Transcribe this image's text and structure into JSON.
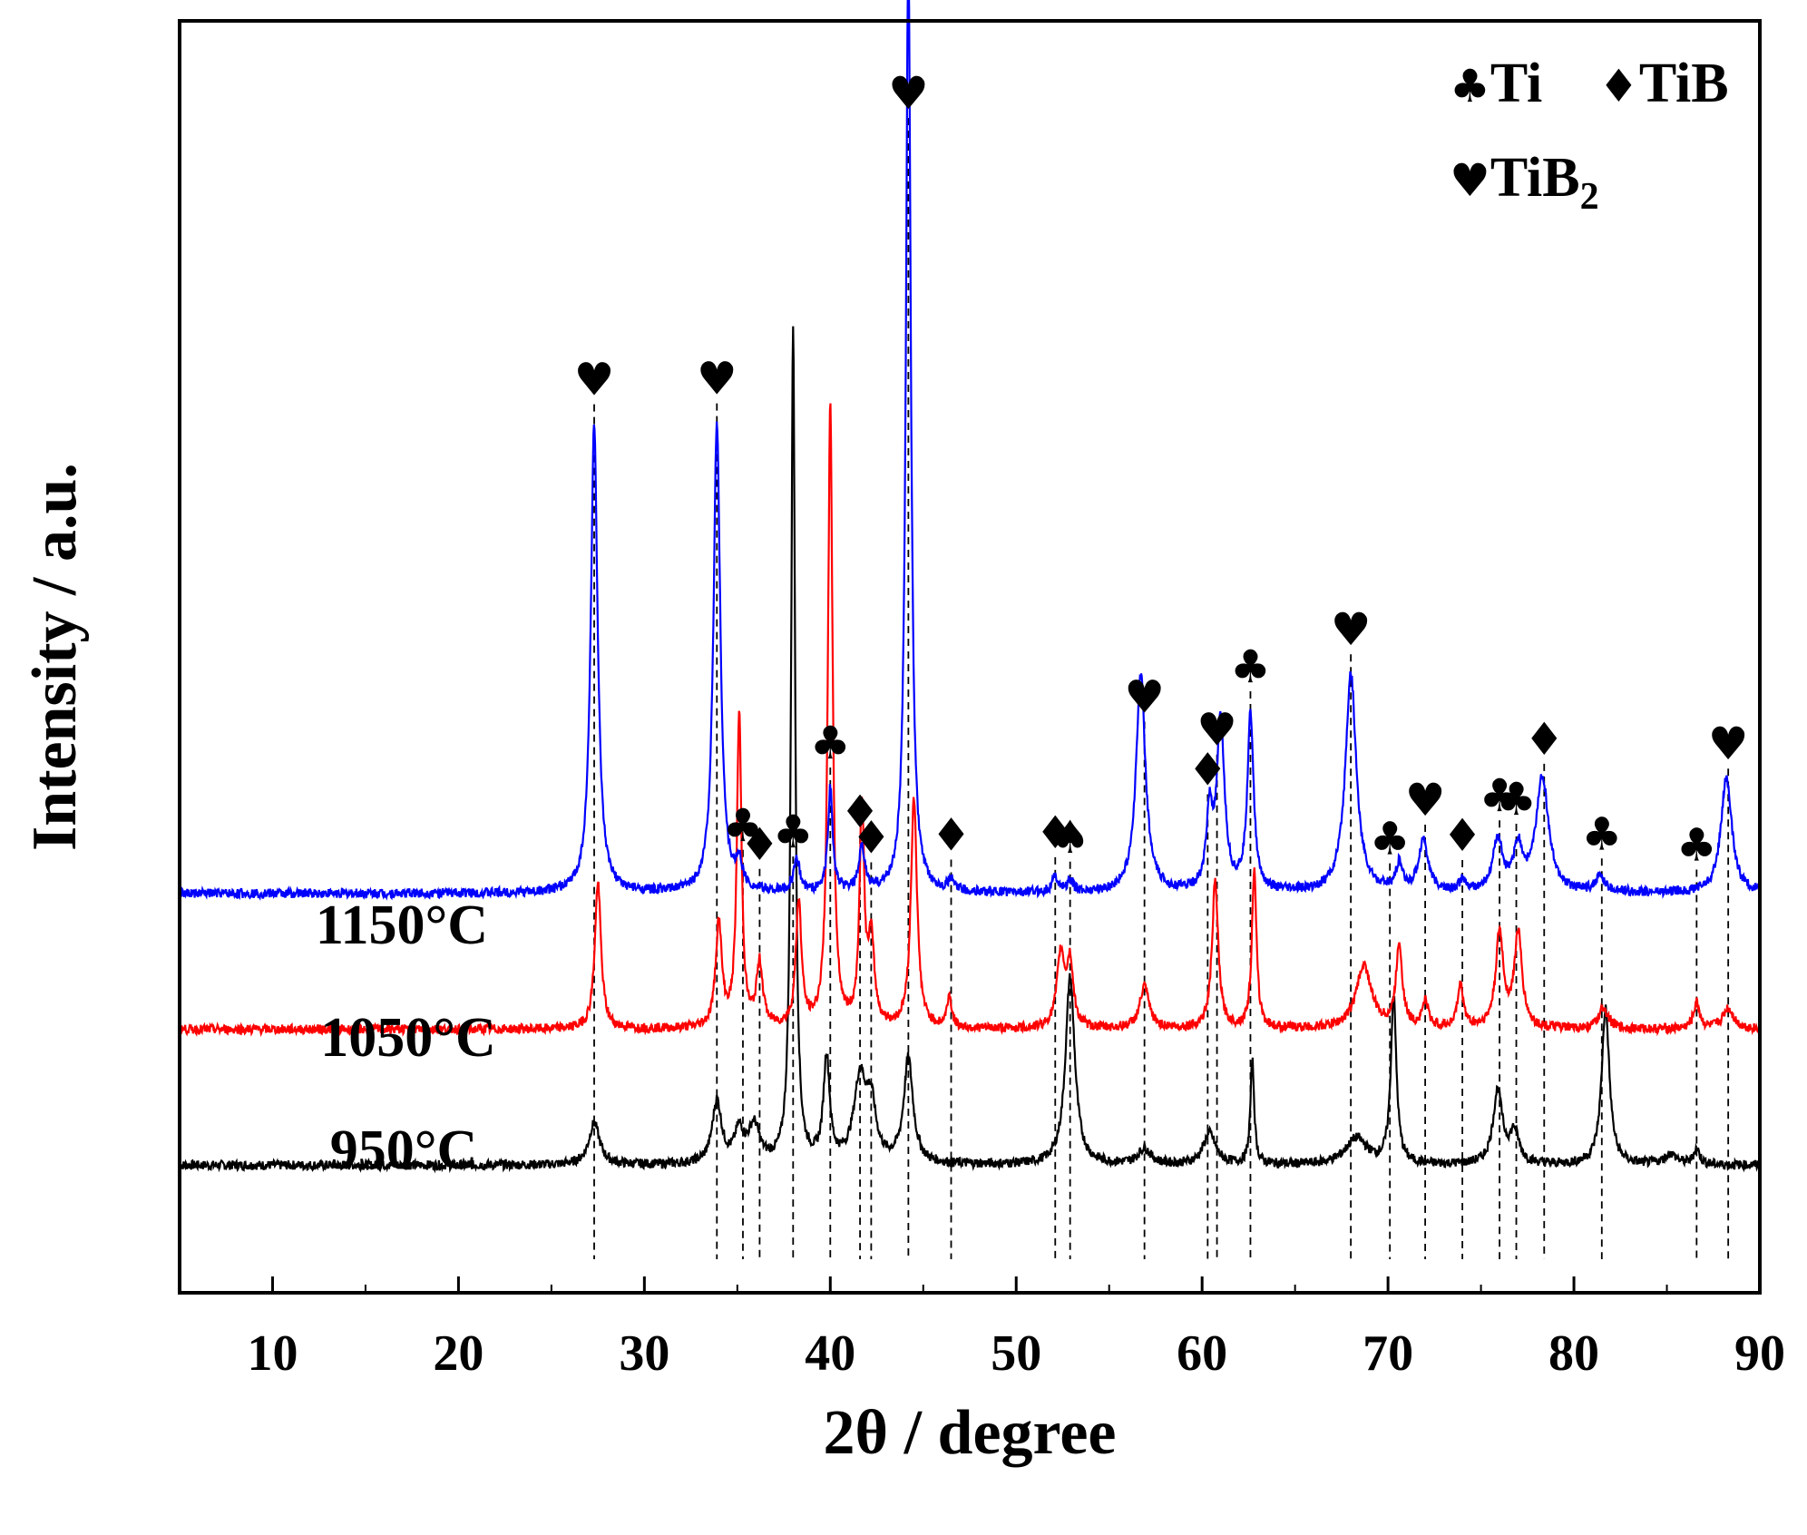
{
  "chart_data": {
    "type": "line",
    "title": "",
    "xlabel": "2θ / degree",
    "ylabel": "Intensity / a.u.",
    "xlim": [
      5,
      90
    ],
    "xticks": [
      10,
      20,
      30,
      40,
      50,
      60,
      70,
      80,
      90
    ],
    "ylim": [
      0,
      100
    ],
    "grid": false,
    "legend": {
      "placement": "top-right",
      "entries": [
        {
          "symbol": "♣",
          "label": "Ti"
        },
        {
          "symbol": "♦",
          "label": "TiB"
        },
        {
          "symbol": "♥",
          "label": "TiB",
          "subscript": "2"
        }
      ]
    },
    "series": [
      {
        "name": "950°C",
        "color": "#000000",
        "baseline": 5,
        "peaks": [
          {
            "x": 27.3,
            "h": 4,
            "w": 0.35
          },
          {
            "x": 33.9,
            "h": 6,
            "w": 0.3
          },
          {
            "x": 35.1,
            "h": 3,
            "w": 0.3
          },
          {
            "x": 35.9,
            "h": 3.5,
            "w": 0.35
          },
          {
            "x": 38.0,
            "h": 80,
            "w": 0.13
          },
          {
            "x": 39.8,
            "h": 10,
            "w": 0.2
          },
          {
            "x": 41.6,
            "h": 8,
            "w": 0.4
          },
          {
            "x": 42.2,
            "h": 5,
            "w": 0.3
          },
          {
            "x": 44.2,
            "h": 10,
            "w": 0.3
          },
          {
            "x": 52.9,
            "h": 18,
            "w": 0.3
          },
          {
            "x": 56.9,
            "h": 1.5,
            "w": 0.4
          },
          {
            "x": 60.4,
            "h": 3,
            "w": 0.4
          },
          {
            "x": 62.7,
            "h": 10,
            "w": 0.12
          },
          {
            "x": 68.3,
            "h": 2.5,
            "w": 0.7
          },
          {
            "x": 70.3,
            "h": 16,
            "w": 0.18
          },
          {
            "x": 75.9,
            "h": 7,
            "w": 0.3
          },
          {
            "x": 76.8,
            "h": 3,
            "w": 0.3
          },
          {
            "x": 81.7,
            "h": 15,
            "w": 0.25
          },
          {
            "x": 85.2,
            "h": 1,
            "w": 0.4
          },
          {
            "x": 86.6,
            "h": 1.5,
            "w": 0.2
          }
        ]
      },
      {
        "name": "1050°C",
        "color": "#ff0000",
        "baseline": 18,
        "peaks": [
          {
            "x": 27.5,
            "h": 14,
            "w": 0.2
          },
          {
            "x": 34.0,
            "h": 10,
            "w": 0.2
          },
          {
            "x": 35.1,
            "h": 30,
            "w": 0.15
          },
          {
            "x": 36.2,
            "h": 6,
            "w": 0.2
          },
          {
            "x": 38.3,
            "h": 12,
            "w": 0.18
          },
          {
            "x": 40.0,
            "h": 60,
            "w": 0.15
          },
          {
            "x": 41.7,
            "h": 21,
            "w": 0.15
          },
          {
            "x": 42.2,
            "h": 8,
            "w": 0.2
          },
          {
            "x": 44.5,
            "h": 22,
            "w": 0.2
          },
          {
            "x": 46.4,
            "h": 3,
            "w": 0.15
          },
          {
            "x": 52.4,
            "h": 7,
            "w": 0.25
          },
          {
            "x": 52.9,
            "h": 6,
            "w": 0.2
          },
          {
            "x": 56.9,
            "h": 4,
            "w": 0.3
          },
          {
            "x": 60.7,
            "h": 14,
            "w": 0.2
          },
          {
            "x": 62.8,
            "h": 15,
            "w": 0.15
          },
          {
            "x": 68.7,
            "h": 6,
            "w": 0.5
          },
          {
            "x": 70.6,
            "h": 8,
            "w": 0.2
          },
          {
            "x": 72.0,
            "h": 2.5,
            "w": 0.2
          },
          {
            "x": 73.9,
            "h": 4,
            "w": 0.2
          },
          {
            "x": 76.0,
            "h": 9,
            "w": 0.25
          },
          {
            "x": 77.0,
            "h": 9,
            "w": 0.25
          },
          {
            "x": 81.6,
            "h": 2,
            "w": 0.3
          },
          {
            "x": 86.6,
            "h": 2.5,
            "w": 0.2
          },
          {
            "x": 88.3,
            "h": 2,
            "w": 0.35
          }
        ]
      },
      {
        "name": "1150°C",
        "color": "#0000ff",
        "baseline": 31,
        "peaks": [
          {
            "x": 27.3,
            "h": 45,
            "w": 0.22
          },
          {
            "x": 33.9,
            "h": 45,
            "w": 0.22
          },
          {
            "x": 35.1,
            "h": 2.5,
            "w": 0.2
          },
          {
            "x": 38.2,
            "h": 3,
            "w": 0.2
          },
          {
            "x": 40.0,
            "h": 10,
            "w": 0.15
          },
          {
            "x": 41.7,
            "h": 4,
            "w": 0.2
          },
          {
            "x": 44.2,
            "h": 90,
            "w": 0.16
          },
          {
            "x": 46.5,
            "h": 1,
            "w": 0.2
          },
          {
            "x": 52.1,
            "h": 1.5,
            "w": 0.2
          },
          {
            "x": 52.9,
            "h": 1,
            "w": 0.2
          },
          {
            "x": 56.7,
            "h": 21,
            "w": 0.3
          },
          {
            "x": 60.4,
            "h": 7,
            "w": 0.2
          },
          {
            "x": 61.0,
            "h": 16,
            "w": 0.25
          },
          {
            "x": 62.6,
            "h": 17,
            "w": 0.2
          },
          {
            "x": 68.0,
            "h": 21,
            "w": 0.35
          },
          {
            "x": 70.6,
            "h": 2.5,
            "w": 0.2
          },
          {
            "x": 71.9,
            "h": 5,
            "w": 0.3
          },
          {
            "x": 74.0,
            "h": 1,
            "w": 0.2
          },
          {
            "x": 75.9,
            "h": 5,
            "w": 0.3
          },
          {
            "x": 77.0,
            "h": 4,
            "w": 0.3
          },
          {
            "x": 78.3,
            "h": 11,
            "w": 0.4
          },
          {
            "x": 81.4,
            "h": 1.5,
            "w": 0.3
          },
          {
            "x": 88.2,
            "h": 11,
            "w": 0.35
          }
        ]
      }
    ],
    "annotations": [
      {
        "symbol": "♥",
        "phase": "TiB2",
        "x": 27.3
      },
      {
        "symbol": "♥",
        "phase": "TiB2",
        "x": 33.9
      },
      {
        "symbol": "♣",
        "phase": "Ti",
        "x": 35.3
      },
      {
        "symbol": "♦",
        "phase": "TiB",
        "x": 36.2
      },
      {
        "symbol": "♣",
        "phase": "Ti",
        "x": 38.0
      },
      {
        "symbol": "♣",
        "phase": "Ti",
        "x": 40.0
      },
      {
        "symbol": "♦",
        "phase": "TiB",
        "x": 41.6
      },
      {
        "symbol": "♦",
        "phase": "TiB",
        "x": 42.2
      },
      {
        "symbol": "♥",
        "phase": "TiB2",
        "x": 44.2
      },
      {
        "symbol": "♦",
        "phase": "TiB",
        "x": 46.5
      },
      {
        "symbol": "♦",
        "phase": "TiB",
        "x": 52.1
      },
      {
        "symbol": "♠",
        "phase": "",
        "x": 52.9
      },
      {
        "symbol": "♥",
        "phase": "TiB2",
        "x": 56.9
      },
      {
        "symbol": "♦",
        "phase": "TiB",
        "x": 60.3
      },
      {
        "symbol": "♥",
        "phase": "TiB2",
        "x": 60.8
      },
      {
        "symbol": "♣",
        "phase": "Ti",
        "x": 62.6
      },
      {
        "symbol": "♥",
        "phase": "TiB2",
        "x": 68.0
      },
      {
        "symbol": "♣",
        "phase": "Ti",
        "x": 70.1
      },
      {
        "symbol": "♥",
        "phase": "TiB2",
        "x": 72.0
      },
      {
        "symbol": "♦",
        "phase": "TiB",
        "x": 74.0
      },
      {
        "symbol": "♣",
        "phase": "Ti",
        "x": 76.0
      },
      {
        "symbol": "♣",
        "phase": "Ti",
        "x": 76.9
      },
      {
        "symbol": "♦",
        "phase": "TiB",
        "x": 78.4
      },
      {
        "symbol": "♣",
        "phase": "Ti",
        "x": 81.5
      },
      {
        "symbol": "♣",
        "phase": "Ti",
        "x": 86.6
      },
      {
        "symbol": "♥",
        "phase": "TiB2",
        "x": 88.3
      }
    ]
  }
}
